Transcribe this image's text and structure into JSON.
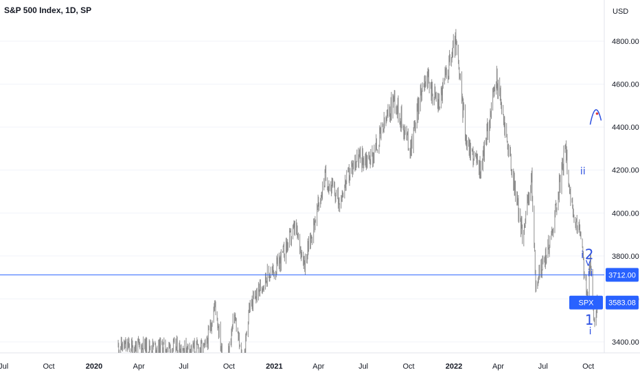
{
  "chart": {
    "title": "S&P 500 Index, 1D, SP",
    "currency": "USD",
    "hline_price_label": "3712.00",
    "symbol_tag": "SPX",
    "last_price_label": "3583.08",
    "colors": {
      "candle": "#8c8c8c",
      "hline": "#2962ff",
      "tag_bg": "#2962ff",
      "wave": "#2a4ee0",
      "grid": "#f0f3fa"
    }
  },
  "chart_data": {
    "type": "line",
    "title": "S&P 500 Index, 1D, SP",
    "ylabel": "USD",
    "ylim": [
      3330,
      4890
    ],
    "y_ticks": [
      "3400.00",
      "3600.00",
      "3800.00",
      "4000.00",
      "4200.00",
      "4400.00",
      "4600.00",
      "4800.00"
    ],
    "x_tick_labels": [
      "Jul",
      "Oct",
      "2020",
      "Apr",
      "Jul",
      "Oct",
      "2021",
      "Apr",
      "Jul",
      "Oct",
      "2022",
      "Apr",
      "Jul",
      "Oct"
    ],
    "horizontal_line": 3712.0,
    "last_price": 3583.08,
    "series": [
      {
        "x": [
          "2020-02-19",
          "2020-08-15",
          "2020-09-03",
          "2020-09-23",
          "2020-10-12",
          "2020-10-30",
          "2020-11-10",
          "2020-12-15",
          "2021-01-05",
          "2021-02-12",
          "2021-03-04",
          "2021-04-15",
          "2021-05-12",
          "2021-06-15",
          "2021-07-19",
          "2021-08-20",
          "2021-09-02",
          "2021-10-04",
          "2021-11-02",
          "2021-12-01",
          "2022-01-04",
          "2022-01-27",
          "2022-02-24",
          "2022-03-29",
          "2022-05-20",
          "2022-06-08",
          "2022-06-16",
          "2022-07-15",
          "2022-08-16",
          "2022-09-01",
          "2022-09-13",
          "2022-09-30",
          "2022-10-05",
          "2022-10-13",
          "2022-10-20"
        ],
        "values": [
          3380,
          3370,
          3580,
          3240,
          3530,
          3270,
          3550,
          3700,
          3740,
          3930,
          3770,
          4170,
          4060,
          4250,
          4260,
          4450,
          4540,
          4300,
          4640,
          4510,
          4800,
          4330,
          4200,
          4630,
          3900,
          4160,
          3666,
          3860,
          4300,
          3950,
          3930,
          3585,
          3790,
          3491,
          3583
        ]
      }
    ],
    "annotations": [
      {
        "text": "ii",
        "date": "2022-09-20",
        "price": 4180
      },
      {
        "text": "i",
        "date": "2022-09-19",
        "price": 3790
      },
      {
        "text": "2",
        "date": "2022-10-03",
        "price": 3785
      },
      {
        "text": "v",
        "date": "2022-10-01",
        "price": 3755
      },
      {
        "text": "ii",
        "date": "2022-10-05",
        "price": 3705
      },
      {
        "text": "1",
        "date": "2022-10-03",
        "price": 3480
      },
      {
        "text": "i",
        "date": "2022-10-05",
        "price": 3435
      }
    ]
  }
}
